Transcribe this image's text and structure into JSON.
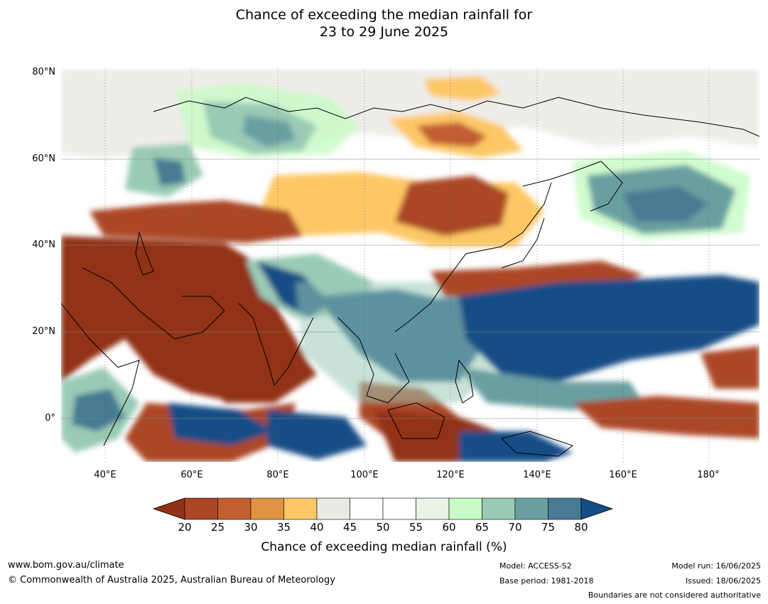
{
  "title": {
    "line1": "Chance of exceeding the median rainfall for",
    "line2": "23 to 29 June 2025"
  },
  "axes": {
    "lat_labels": [
      "80°N",
      "60°N",
      "40°N",
      "20°N",
      "0°"
    ],
    "lon_labels": [
      "40°E",
      "60°E",
      "80°E",
      "100°E",
      "120°E",
      "140°E",
      "160°E",
      "180°"
    ]
  },
  "colorbar": {
    "title": "Chance of exceeding median rainfall (%)",
    "ticks": [
      "20",
      "25",
      "30",
      "35",
      "40",
      "45",
      "50",
      "55",
      "60",
      "65",
      "70",
      "75",
      "80"
    ],
    "colors": [
      "#923219",
      "#ab4627",
      "#c15f31",
      "#e09344",
      "#fdc765",
      "#ebe9e4",
      "#ffffff",
      "#ffffff",
      "#e7f4e7",
      "#c8fbc6",
      "#9acbb6",
      "#6a9fa1",
      "#477a93",
      "#134e86"
    ]
  },
  "footer": {
    "website": "www.bom.gov.au/climate",
    "copyright": "© Commonwealth of Australia 2025, Australian Bureau of Meteorology",
    "model": "Model: ACCESS-S2",
    "base_period": "Base period: 1981-2018",
    "model_run": "Model run: 16/06/2025",
    "issued": "Issued: 18/06/2025",
    "boundaries": "Boundaries are not considered authoritative"
  }
}
